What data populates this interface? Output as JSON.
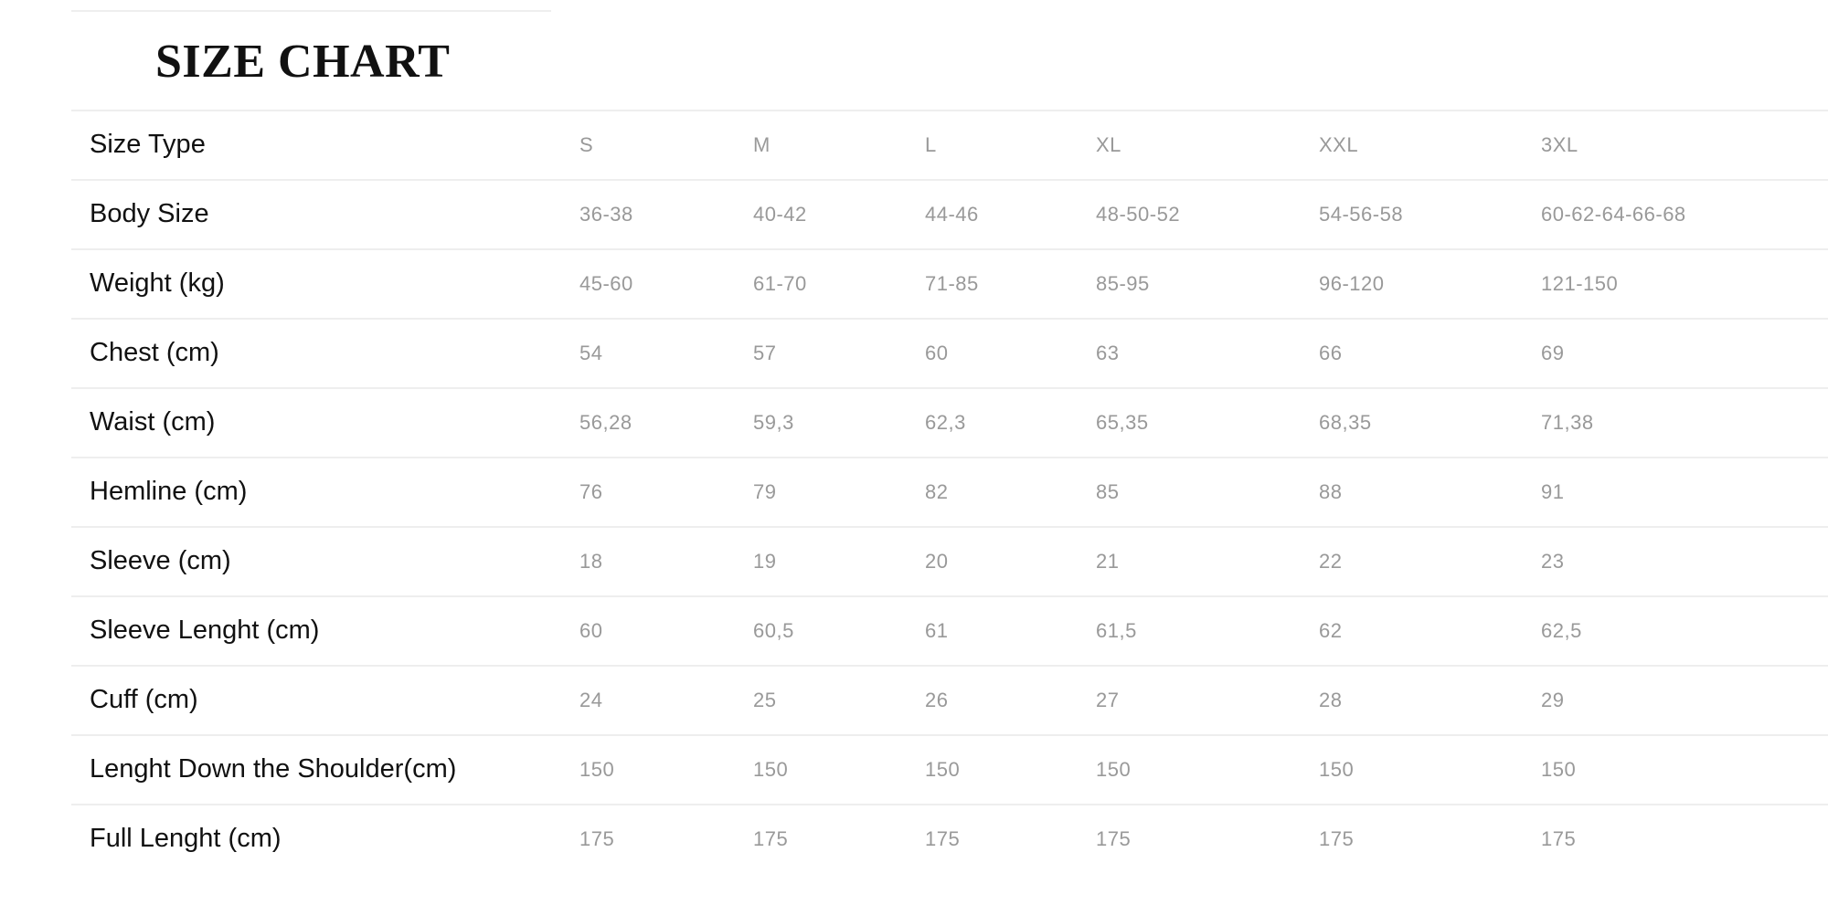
{
  "title": "SIZE CHART",
  "rows": [
    {
      "label": "Size Type",
      "values": [
        "S",
        "M",
        "L",
        "XL",
        "XXL",
        "3XL"
      ]
    },
    {
      "label": "Body Size",
      "values": [
        "36-38",
        "40-42",
        "44-46",
        "48-50-52",
        "54-56-58",
        "60-62-64-66-68"
      ]
    },
    {
      "label": "Weight (kg)",
      "values": [
        "45-60",
        "61-70",
        "71-85",
        "85-95",
        "96-120",
        "121-150"
      ]
    },
    {
      "label": "Chest (cm)",
      "values": [
        "54",
        "57",
        "60",
        "63",
        "66",
        "69"
      ]
    },
    {
      "label": "Waist (cm)",
      "values": [
        "56,28",
        "59,3",
        "62,3",
        "65,35",
        "68,35",
        "71,38"
      ]
    },
    {
      "label": "Hemline (cm)",
      "values": [
        "76",
        "79",
        "82",
        "85",
        "88",
        "91"
      ]
    },
    {
      "label": "Sleeve (cm)",
      "values": [
        "18",
        "19",
        "20",
        "21",
        "22",
        "23"
      ]
    },
    {
      "label": "Sleeve Lenght (cm)",
      "values": [
        "60",
        "60,5",
        "61",
        "61,5",
        "62",
        "62,5"
      ]
    },
    {
      "label": "Cuff (cm)",
      "values": [
        "24",
        "25",
        "26",
        "27",
        "28",
        "29"
      ]
    },
    {
      "label": "Lenght Down the Shoulder(cm)",
      "values": [
        "150",
        "150",
        "150",
        "150",
        "150",
        "150"
      ]
    },
    {
      "label": "Full Lenght (cm)",
      "values": [
        "175",
        "175",
        "175",
        "175",
        "175",
        "175"
      ]
    }
  ]
}
